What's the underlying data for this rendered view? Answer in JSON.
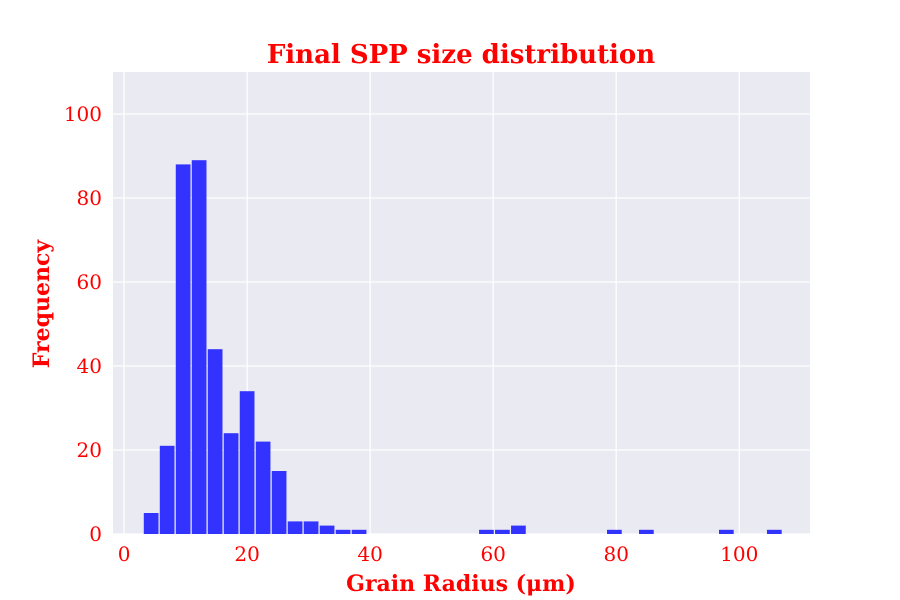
{
  "chart_data": {
    "type": "bar",
    "title": "Final SPP size distribution",
    "xlabel": "Grain Radius (μm)",
    "ylabel": "Frequency",
    "xlim": [
      -1.8,
      111.5
    ],
    "ylim": [
      0,
      110
    ],
    "xticks": [
      0,
      20,
      40,
      60,
      80,
      100
    ],
    "yticks": [
      0,
      20,
      40,
      60,
      80,
      100
    ],
    "grid": true,
    "bar_color": "#3333ff",
    "plot_background": "#eaeaf2",
    "text_color": "#ff0000",
    "bin_width": 2.6,
    "bins": [
      {
        "x": 4.4,
        "value": 5
      },
      {
        "x": 7.0,
        "value": 21
      },
      {
        "x": 9.6,
        "value": 88
      },
      {
        "x": 12.2,
        "value": 89
      },
      {
        "x": 14.8,
        "value": 44
      },
      {
        "x": 17.4,
        "value": 24
      },
      {
        "x": 20.0,
        "value": 34
      },
      {
        "x": 22.6,
        "value": 22
      },
      {
        "x": 25.2,
        "value": 15
      },
      {
        "x": 27.8,
        "value": 3
      },
      {
        "x": 30.4,
        "value": 3
      },
      {
        "x": 33.0,
        "value": 2
      },
      {
        "x": 35.6,
        "value": 1
      },
      {
        "x": 38.2,
        "value": 1
      },
      {
        "x": 58.9,
        "value": 1
      },
      {
        "x": 61.5,
        "value": 1
      },
      {
        "x": 64.1,
        "value": 2
      },
      {
        "x": 79.7,
        "value": 1
      },
      {
        "x": 84.9,
        "value": 1
      },
      {
        "x": 97.9,
        "value": 1
      },
      {
        "x": 105.7,
        "value": 1
      }
    ]
  }
}
